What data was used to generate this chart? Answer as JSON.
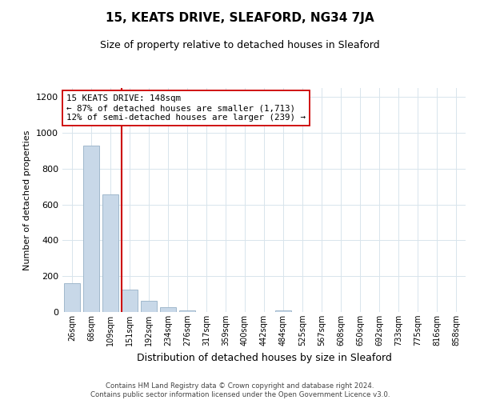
{
  "title": "15, KEATS DRIVE, SLEAFORD, NG34 7JA",
  "subtitle": "Size of property relative to detached houses in Sleaford",
  "xlabel": "Distribution of detached houses by size in Sleaford",
  "ylabel": "Number of detached properties",
  "bar_labels": [
    "26sqm",
    "68sqm",
    "109sqm",
    "151sqm",
    "192sqm",
    "234sqm",
    "276sqm",
    "317sqm",
    "359sqm",
    "400sqm",
    "442sqm",
    "484sqm",
    "525sqm",
    "567sqm",
    "608sqm",
    "650sqm",
    "692sqm",
    "733sqm",
    "775sqm",
    "816sqm",
    "858sqm"
  ],
  "bar_values": [
    160,
    930,
    655,
    125,
    63,
    28,
    10,
    0,
    0,
    0,
    0,
    10,
    0,
    0,
    0,
    0,
    0,
    0,
    0,
    0,
    0
  ],
  "bar_color": "#c8d8e8",
  "bar_edge_color": "#a0b8cc",
  "vline_color": "#cc0000",
  "annotation_line1": "15 KEATS DRIVE: 148sqm",
  "annotation_line2": "← 87% of detached houses are smaller (1,713)",
  "annotation_line3": "12% of semi-detached houses are larger (239) →",
  "annotation_box_color": "#ffffff",
  "annotation_box_edge": "#cc0000",
  "ylim": [
    0,
    1250
  ],
  "yticks": [
    0,
    200,
    400,
    600,
    800,
    1000,
    1200
  ],
  "footer_line1": "Contains HM Land Registry data © Crown copyright and database right 2024.",
  "footer_line2": "Contains public sector information licensed under the Open Government Licence v3.0.",
  "bg_color": "#ffffff",
  "grid_color": "#d8e4ec"
}
